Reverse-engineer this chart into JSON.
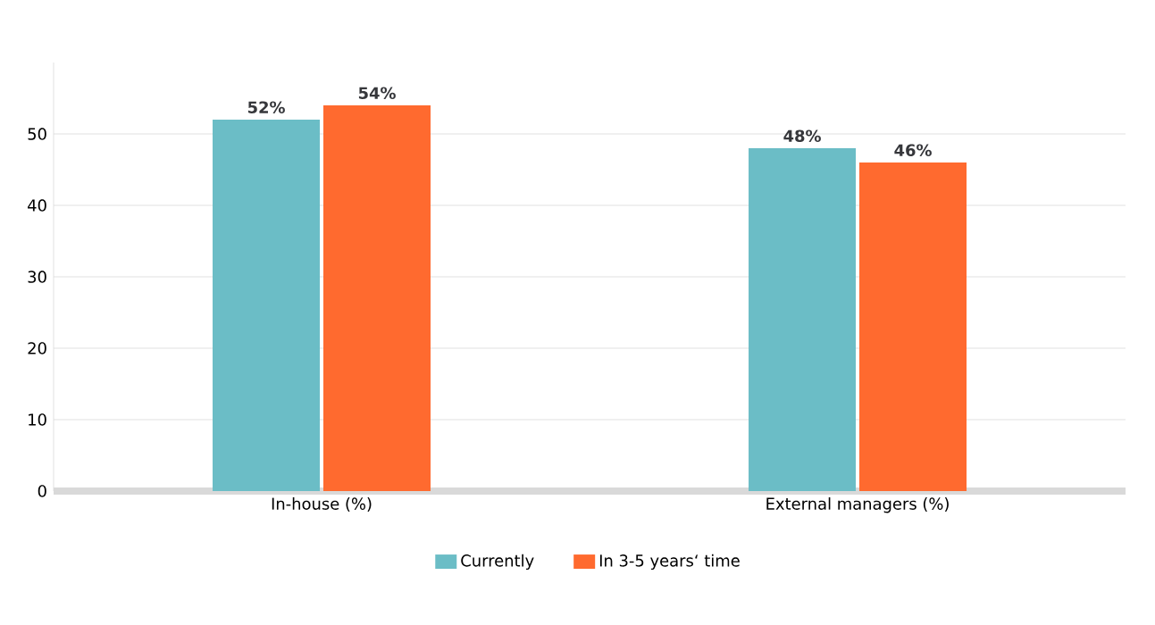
{
  "chart_data": {
    "type": "bar",
    "categories": [
      "In-house (%)",
      "External managers (%)"
    ],
    "series": [
      {
        "name": "Currently",
        "color": "#6bbdc6",
        "values": [
          52,
          48
        ],
        "value_labels": [
          "52%",
          "48%"
        ]
      },
      {
        "name": "In 3-5 years‘ time",
        "color": "#ff6a2f",
        "values": [
          54,
          46
        ],
        "value_labels": [
          "54%",
          "46%"
        ]
      }
    ],
    "ylim": [
      0,
      60
    ],
    "yticks": [
      0,
      10,
      20,
      30,
      40,
      50
    ],
    "grid": "y",
    "legend": "bottom"
  }
}
